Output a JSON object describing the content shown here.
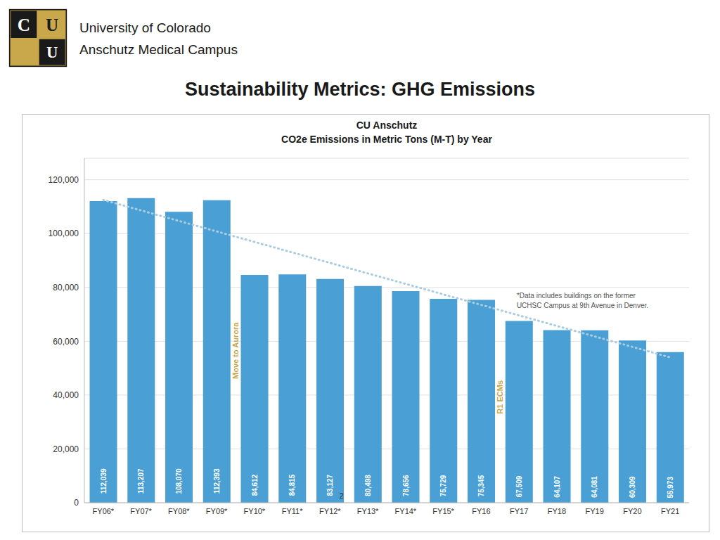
{
  "chart_data": {
    "type": "bar",
    "title": "Sustainability Metrics: GHG Emissions",
    "header": [
      "University of Colorado",
      "Anschutz Medical Campus"
    ],
    "logo_letters": [
      "C",
      "U",
      "C",
      "U"
    ],
    "logo_colors": [
      "#c8a84b",
      "#1a1a1a"
    ],
    "subtitle": [
      "CU Anschutz",
      "CO2e Emissions in Metric Tons (M-T) by Year"
    ],
    "categories": [
      "FY06*",
      "FY07*",
      "FY08*",
      "FY09*",
      "FY10*",
      "FY11*",
      "FY12*",
      "FY13*",
      "FY14*",
      "FY15*",
      "FY16",
      "FY17",
      "FY18",
      "FY19",
      "FY20",
      "FY21"
    ],
    "values": [
      112039,
      113207,
      108070,
      112393,
      84612,
      84815,
      83127,
      80498,
      78656,
      75729,
      75345,
      67509,
      64107,
      64081,
      60309,
      55973
    ],
    "value_labels": [
      "112,039",
      "113,207",
      "108,070",
      "112,393",
      "84,612",
      "84,815",
      "83,127",
      "80,498",
      "78,656",
      "75,729",
      "75,345",
      "67,509",
      "64,107",
      "64,081",
      "60,309",
      "55,973"
    ],
    "data_labels": true,
    "color": "#4a9fd4",
    "ylim": [
      0,
      128000
    ],
    "yticks": [
      0,
      {
        "value": 20000,
        "label": "20,000"
      },
      {
        "value": 40000,
        "label": "40,000"
      },
      {
        "value": 60000,
        "label": "60,000"
      },
      {
        "value": 80000,
        "label": "80,000"
      },
      {
        "value": 100000,
        "label": "100,000"
      },
      {
        "value": 120000,
        "label": "120,000"
      }
    ],
    "grid": true,
    "trend_line": {
      "categories": [
        "FY06*",
        "FY21"
      ],
      "values": [
        112500,
        54000
      ],
      "color": "#aacce0",
      "line_style": "dotted"
    },
    "annotations": [
      {
        "text": "Move to Aurora",
        "x": 3.5,
        "y": 46000,
        "color": "#c8a84b"
      },
      {
        "text": "R1 ECMs",
        "x": 10.5,
        "y": 33000,
        "color": "#c8a84b"
      },
      {
        "text": "2",
        "x": 6.3,
        "y": 1500,
        "color": "#333333"
      }
    ],
    "note": [
      "*Data includes buildings on the former",
      "UCHSC Campus at 9th Avenue in Denver."
    ]
  }
}
